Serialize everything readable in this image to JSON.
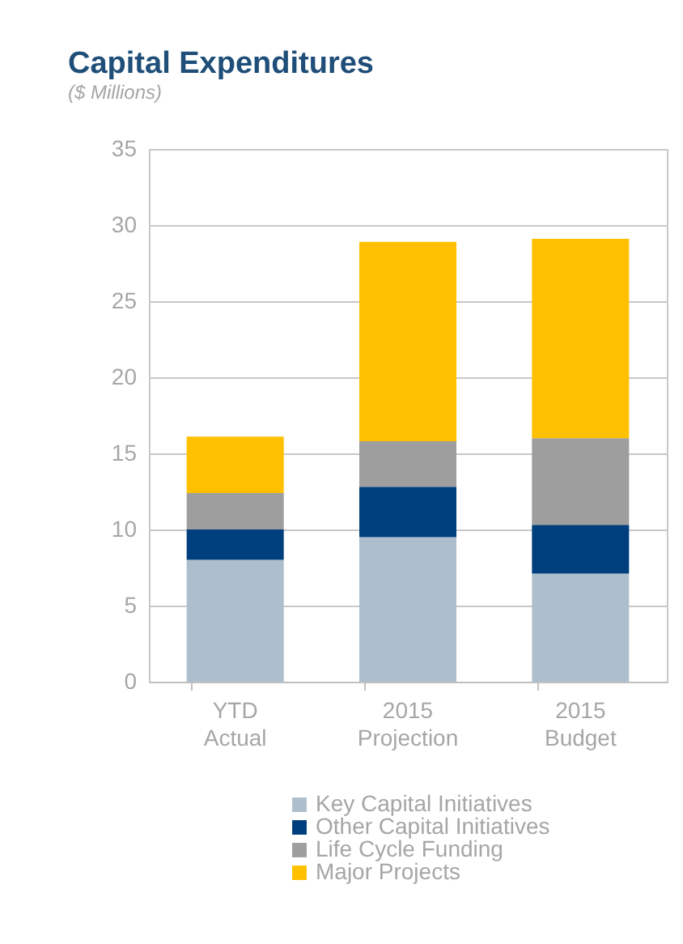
{
  "chart_data": {
    "type": "bar",
    "title": "Capital Expenditures",
    "subtitle": "($ Millions)",
    "categories": [
      "YTD Actual",
      "2015 Projection",
      "2015 Budget"
    ],
    "stacked": true,
    "series": [
      {
        "name": "Key Capital Initiatives",
        "color": "#adbfcd",
        "values": [
          8.0,
          9.5,
          7.1
        ]
      },
      {
        "name": "Other Capital Initiatives",
        "color": "#003f7d",
        "values": [
          2.0,
          3.3,
          3.2
        ]
      },
      {
        "name": "Life Cycle Funding",
        "color": "#9e9e9e",
        "values": [
          2.4,
          3.0,
          5.7
        ]
      },
      {
        "name": "Major Projects",
        "color": "#ffc000",
        "values": [
          3.7,
          13.1,
          13.1
        ]
      }
    ],
    "ylim": [
      0,
      35
    ],
    "yticks": [
      0,
      5,
      10,
      15,
      20,
      25,
      30,
      35
    ],
    "grid": true,
    "legend": "bottom"
  }
}
